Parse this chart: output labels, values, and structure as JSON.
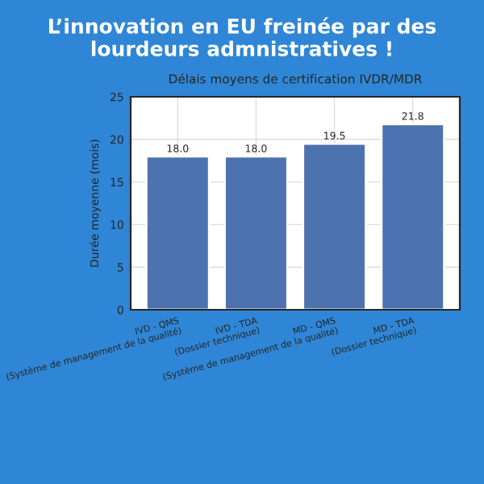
{
  "chart_data": {
    "type": "bar",
    "title": "L’innovation en EU freinée par des lourdeurs admnistratives !",
    "subtitle": "Délais moyens de certification IVDR/MDR",
    "ylabel": "Durée moyenne (mois)",
    "categories": [
      "IVD - QMS\n(Système de management de la qualité)",
      "IVD - TDA\n(Dossier technique)",
      "MD - QMS\n(Système de management de la qualité)",
      "MD - TDA\n(Dossier technique)"
    ],
    "values": [
      18.0,
      18.0,
      19.5,
      21.8
    ],
    "color": "#4c72b0",
    "value_labels": [
      "18.0",
      "18.0",
      "19.5",
      "21.8"
    ],
    "ylim": [
      0,
      25
    ],
    "yticks": [
      0,
      5,
      10,
      15,
      20,
      25
    ],
    "grid": true
  }
}
